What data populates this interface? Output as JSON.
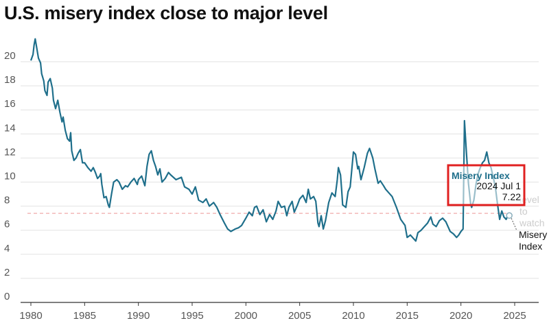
{
  "title": "U.S. misery index close to major level",
  "chart_data": {
    "type": "line",
    "title": "U.S. misery index close to major level",
    "xlim": [
      1980,
      2025
    ],
    "ylim": [
      0,
      22
    ],
    "x_ticks": [
      1980,
      1985,
      1990,
      1995,
      2000,
      2005,
      2010,
      2015,
      2020,
      2025
    ],
    "y_ticks": [
      0,
      2,
      4,
      6,
      8,
      10,
      12,
      14,
      16,
      18,
      20
    ],
    "grid": true,
    "line_color": "#1f6f8b",
    "reference_line": {
      "label": "level to watch",
      "value": 7.4,
      "color": "#f2b8b8"
    },
    "series": [
      {
        "name": "Misery Index",
        "points": [
          [
            1980.0,
            20.1
          ],
          [
            1980.2,
            20.6
          ],
          [
            1980.3,
            21.4
          ],
          [
            1980.4,
            21.9
          ],
          [
            1980.5,
            21.4
          ],
          [
            1980.7,
            20.3
          ],
          [
            1980.9,
            19.9
          ],
          [
            1981.0,
            19.0
          ],
          [
            1981.2,
            18.4
          ],
          [
            1981.3,
            17.6
          ],
          [
            1981.5,
            17.2
          ],
          [
            1981.6,
            18.3
          ],
          [
            1981.8,
            18.6
          ],
          [
            1982.0,
            17.8
          ],
          [
            1982.1,
            16.8
          ],
          [
            1982.3,
            16.1
          ],
          [
            1982.5,
            16.8
          ],
          [
            1982.7,
            15.8
          ],
          [
            1982.9,
            15.0
          ],
          [
            1983.0,
            15.4
          ],
          [
            1983.2,
            14.3
          ],
          [
            1983.4,
            13.6
          ],
          [
            1983.6,
            13.4
          ],
          [
            1983.7,
            14.1
          ],
          [
            1983.8,
            12.6
          ],
          [
            1984.0,
            11.8
          ],
          [
            1984.2,
            12.0
          ],
          [
            1984.4,
            12.4
          ],
          [
            1984.6,
            12.7
          ],
          [
            1984.8,
            11.6
          ],
          [
            1985.0,
            11.6
          ],
          [
            1985.3,
            11.2
          ],
          [
            1985.6,
            10.9
          ],
          [
            1985.8,
            11.2
          ],
          [
            1986.0,
            10.8
          ],
          [
            1986.2,
            10.3
          ],
          [
            1986.4,
            10.5
          ],
          [
            1986.5,
            10.7
          ],
          [
            1986.6,
            9.8
          ],
          [
            1986.8,
            8.7
          ],
          [
            1987.0,
            8.8
          ],
          [
            1987.2,
            8.1
          ],
          [
            1987.3,
            7.9
          ],
          [
            1987.5,
            9.0
          ],
          [
            1987.7,
            10.0
          ],
          [
            1988.0,
            10.2
          ],
          [
            1988.2,
            10.0
          ],
          [
            1988.5,
            9.4
          ],
          [
            1988.8,
            9.7
          ],
          [
            1989.0,
            9.6
          ],
          [
            1989.3,
            10.0
          ],
          [
            1989.6,
            10.3
          ],
          [
            1989.9,
            9.8
          ],
          [
            1990.0,
            10.2
          ],
          [
            1990.3,
            10.5
          ],
          [
            1990.6,
            9.7
          ],
          [
            1990.8,
            11.3
          ],
          [
            1991.0,
            12.3
          ],
          [
            1991.2,
            12.6
          ],
          [
            1991.4,
            11.8
          ],
          [
            1991.6,
            11.3
          ],
          [
            1991.8,
            10.6
          ],
          [
            1992.0,
            11.1
          ],
          [
            1992.2,
            10.0
          ],
          [
            1992.5,
            10.3
          ],
          [
            1992.8,
            10.8
          ],
          [
            1993.0,
            10.6
          ],
          [
            1993.5,
            10.2
          ],
          [
            1994.0,
            10.4
          ],
          [
            1994.3,
            9.6
          ],
          [
            1994.7,
            9.4
          ],
          [
            1995.0,
            9.0
          ],
          [
            1995.3,
            9.6
          ],
          [
            1995.6,
            8.5
          ],
          [
            1996.0,
            8.3
          ],
          [
            1996.3,
            8.6
          ],
          [
            1996.6,
            8.0
          ],
          [
            1997.0,
            8.3
          ],
          [
            1997.3,
            7.9
          ],
          [
            1997.6,
            7.3
          ],
          [
            1998.0,
            6.6
          ],
          [
            1998.3,
            6.1
          ],
          [
            1998.6,
            5.9
          ],
          [
            1999.0,
            6.1
          ],
          [
            1999.3,
            6.2
          ],
          [
            1999.6,
            6.4
          ],
          [
            2000.0,
            7.0
          ],
          [
            2000.3,
            7.5
          ],
          [
            2000.6,
            7.2
          ],
          [
            2000.8,
            7.9
          ],
          [
            2001.0,
            8.0
          ],
          [
            2001.3,
            7.3
          ],
          [
            2001.6,
            7.7
          ],
          [
            2001.9,
            6.7
          ],
          [
            2002.2,
            7.3
          ],
          [
            2002.5,
            6.9
          ],
          [
            2002.8,
            7.6
          ],
          [
            2003.0,
            8.4
          ],
          [
            2003.3,
            7.9
          ],
          [
            2003.6,
            8.0
          ],
          [
            2003.8,
            7.2
          ],
          [
            2004.0,
            7.9
          ],
          [
            2004.3,
            8.4
          ],
          [
            2004.5,
            7.5
          ],
          [
            2004.8,
            8.1
          ],
          [
            2005.0,
            8.6
          ],
          [
            2005.3,
            8.9
          ],
          [
            2005.6,
            8.3
          ],
          [
            2005.8,
            9.4
          ],
          [
            2006.0,
            8.6
          ],
          [
            2006.3,
            8.8
          ],
          [
            2006.5,
            8.4
          ],
          [
            2006.7,
            6.6
          ],
          [
            2006.8,
            6.3
          ],
          [
            2007.0,
            7.2
          ],
          [
            2007.2,
            6.1
          ],
          [
            2007.4,
            6.8
          ],
          [
            2007.7,
            8.3
          ],
          [
            2008.0,
            9.1
          ],
          [
            2008.3,
            8.8
          ],
          [
            2008.5,
            10.2
          ],
          [
            2008.6,
            11.2
          ],
          [
            2008.8,
            10.6
          ],
          [
            2008.9,
            9.4
          ],
          [
            2009.0,
            8.1
          ],
          [
            2009.3,
            7.9
          ],
          [
            2009.5,
            9.2
          ],
          [
            2009.7,
            9.6
          ],
          [
            2010.0,
            12.5
          ],
          [
            2010.2,
            12.3
          ],
          [
            2010.4,
            11.1
          ],
          [
            2010.5,
            11.3
          ],
          [
            2010.7,
            10.2
          ],
          [
            2011.0,
            11.2
          ],
          [
            2011.3,
            12.4
          ],
          [
            2011.5,
            12.8
          ],
          [
            2011.8,
            12.0
          ],
          [
            2012.0,
            11.1
          ],
          [
            2012.3,
            9.9
          ],
          [
            2012.5,
            10.1
          ],
          [
            2012.8,
            9.7
          ],
          [
            2013.0,
            9.4
          ],
          [
            2013.3,
            9.1
          ],
          [
            2013.6,
            8.8
          ],
          [
            2014.0,
            7.9
          ],
          [
            2014.4,
            6.9
          ],
          [
            2014.8,
            6.4
          ],
          [
            2015.0,
            5.4
          ],
          [
            2015.3,
            5.6
          ],
          [
            2015.6,
            5.3
          ],
          [
            2015.8,
            5.1
          ],
          [
            2016.0,
            5.8
          ],
          [
            2016.3,
            6.0
          ],
          [
            2016.6,
            6.3
          ],
          [
            2016.9,
            6.6
          ],
          [
            2017.2,
            7.1
          ],
          [
            2017.4,
            6.5
          ],
          [
            2017.7,
            6.3
          ],
          [
            2018.0,
            6.8
          ],
          [
            2018.3,
            7.0
          ],
          [
            2018.6,
            6.7
          ],
          [
            2019.0,
            5.9
          ],
          [
            2019.3,
            5.7
          ],
          [
            2019.6,
            5.4
          ],
          [
            2019.8,
            5.6
          ],
          [
            2020.0,
            5.9
          ],
          [
            2020.2,
            6.1
          ],
          [
            2020.33,
            15.1
          ],
          [
            2020.5,
            12.6
          ],
          [
            2020.7,
            9.9
          ],
          [
            2020.9,
            8.2
          ],
          [
            2021.0,
            7.9
          ],
          [
            2021.2,
            8.5
          ],
          [
            2021.4,
            9.8
          ],
          [
            2021.6,
            10.7
          ],
          [
            2021.8,
            11.2
          ],
          [
            2022.0,
            11.6
          ],
          [
            2022.2,
            11.8
          ],
          [
            2022.4,
            12.5
          ],
          [
            2022.6,
            11.6
          ],
          [
            2022.8,
            11.2
          ],
          [
            2023.0,
            10.4
          ],
          [
            2023.2,
            9.6
          ],
          [
            2023.4,
            8.2
          ],
          [
            2023.6,
            6.9
          ],
          [
            2023.8,
            7.6
          ],
          [
            2024.0,
            7.1
          ],
          [
            2024.2,
            6.9
          ],
          [
            2024.4,
            7.3
          ],
          [
            2024.5,
            7.22
          ]
        ]
      }
    ],
    "tooltip": {
      "title": "Misery Index",
      "date": "2024 Jul 1",
      "value": "7.22"
    },
    "annotations": {
      "reference_label_lines": [
        "level",
        "to",
        "watch"
      ],
      "series_label_lines": [
        "Misery",
        "Index"
      ]
    }
  }
}
